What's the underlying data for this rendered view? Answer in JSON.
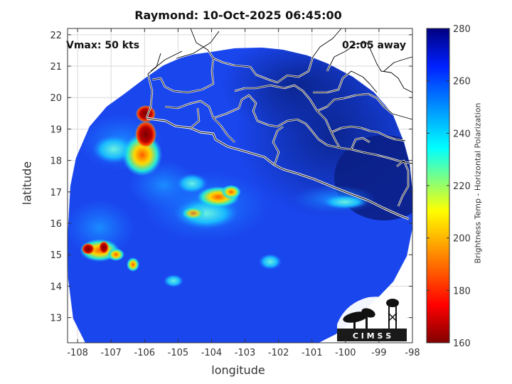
{
  "title": "Raymond: 10-Oct-2025 06:45:00",
  "annotations": {
    "vmax": "Vmax: 50 kts",
    "time_away": "02:05 away"
  },
  "axes": {
    "xlabel": "longitude",
    "ylabel": "latitude",
    "x_ticks": [
      "-108",
      "-107",
      "-106",
      "-105",
      "-104",
      "-103",
      "-102",
      "-101",
      "-100",
      "-99",
      "-98"
    ],
    "y_ticks": [
      "13",
      "14",
      "15",
      "16",
      "17",
      "18",
      "19",
      "20",
      "21",
      "22"
    ],
    "xlim": [
      -108.3,
      -98
    ],
    "ylim": [
      12.2,
      22.2
    ]
  },
  "colorbar": {
    "label": "Brightness Temp - Horizontal Polarization",
    "ticks": [
      "160",
      "180",
      "200",
      "220",
      "240",
      "260",
      "280"
    ],
    "range": [
      160,
      280
    ]
  },
  "logo": {
    "text": "C I M S S"
  },
  "colors": {
    "swath_base": "#1a46ee",
    "land_bg": "#0a1f88",
    "coast": "#ffffff"
  }
}
